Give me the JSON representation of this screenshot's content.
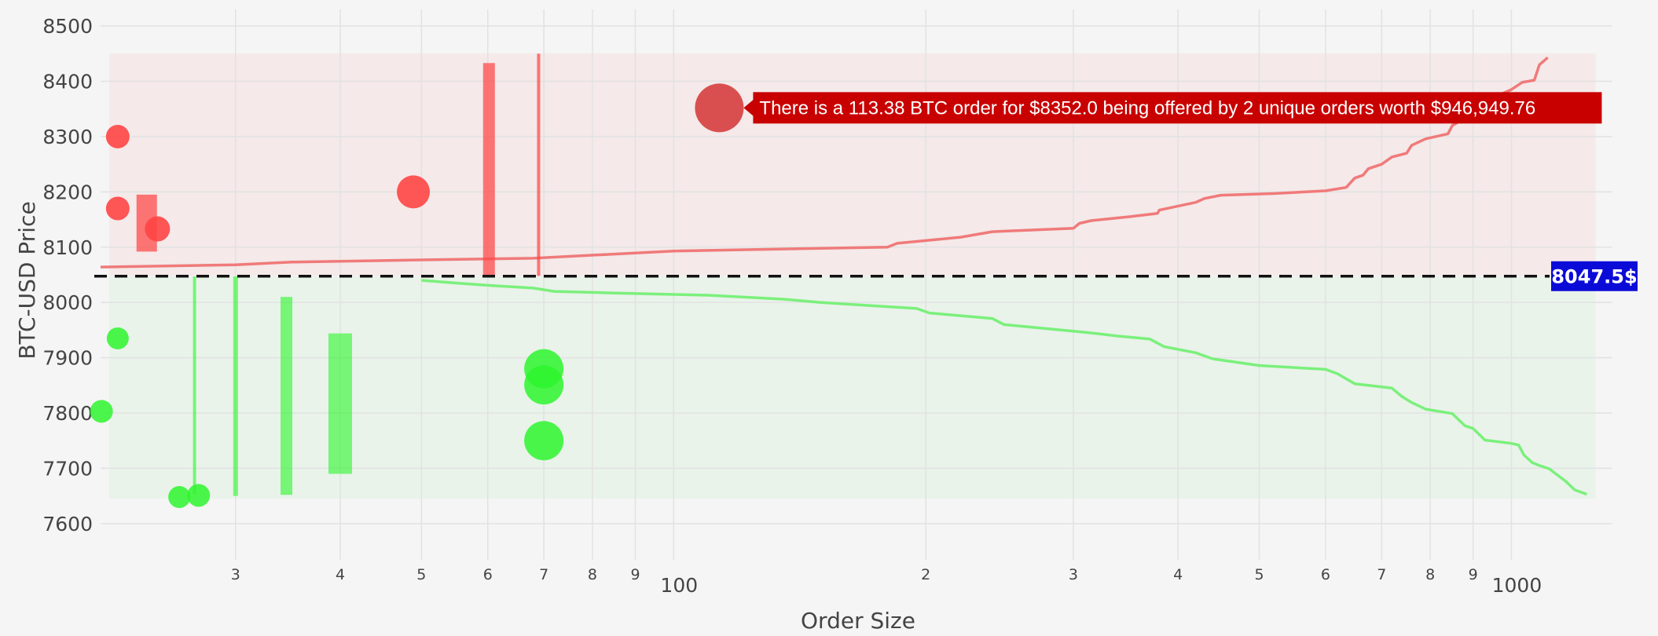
{
  "chart_data": {
    "type": "scatter",
    "title": "",
    "xlabel": "Order Size",
    "ylabel": "BTC-USD Price",
    "x_scale": "log",
    "xlim": [
      20.7,
      1320
    ],
    "ylim": [
      7560,
      8530
    ],
    "grid": true,
    "x_tick_labels": [
      {
        "value": 30,
        "label": "3"
      },
      {
        "value": 40,
        "label": "4"
      },
      {
        "value": 50,
        "label": "5"
      },
      {
        "value": 60,
        "label": "6"
      },
      {
        "value": 70,
        "label": "7"
      },
      {
        "value": 80,
        "label": "8"
      },
      {
        "value": 90,
        "label": "9"
      },
      {
        "value": 100,
        "label": "100"
      },
      {
        "value": 200,
        "label": "2"
      },
      {
        "value": 300,
        "label": "3"
      },
      {
        "value": 400,
        "label": "4"
      },
      {
        "value": 500,
        "label": "5"
      },
      {
        "value": 600,
        "label": "6"
      },
      {
        "value": 700,
        "label": "7"
      },
      {
        "value": 800,
        "label": "8"
      },
      {
        "value": 900,
        "label": "9"
      },
      {
        "value": 1000,
        "label": "1000"
      }
    ],
    "y_ticks": [
      7600,
      7700,
      7800,
      7900,
      8000,
      8100,
      8200,
      8300,
      8400,
      8500
    ],
    "mid_price": 8047.5,
    "mid_price_label": "8047.5$",
    "ask_band": [
      8048,
      8450
    ],
    "bid_band": [
      7645,
      8047
    ],
    "colors": {
      "ask": "#ff4545",
      "ask_line": "#f07a7a",
      "ask_band": "#f5e9e9",
      "bid": "#2ef52e",
      "bid_line": "#7bf07b",
      "bid_band": "#e9f3ea",
      "mid_label_bg": "#0b0bd8",
      "hover_bg": "#c80000",
      "hover_marker": "#d94f4f"
    },
    "ask_depth": [
      [
        20.7,
        8064
      ],
      [
        30,
        8068
      ],
      [
        35,
        8073
      ],
      [
        50,
        8077
      ],
      [
        68,
        8080
      ],
      [
        100,
        8093
      ],
      [
        150,
        8098
      ],
      [
        180,
        8100
      ],
      [
        185,
        8107
      ],
      [
        220,
        8118
      ],
      [
        240,
        8128
      ],
      [
        300,
        8134
      ],
      [
        305,
        8143
      ],
      [
        315,
        8148
      ],
      [
        350,
        8155
      ],
      [
        378,
        8161
      ],
      [
        380,
        8167
      ],
      [
        420,
        8181
      ],
      [
        430,
        8188
      ],
      [
        450,
        8194
      ],
      [
        520,
        8197
      ],
      [
        600,
        8202
      ],
      [
        635,
        8208
      ],
      [
        650,
        8225
      ],
      [
        665,
        8230
      ],
      [
        675,
        8242
      ],
      [
        700,
        8250
      ],
      [
        720,
        8263
      ],
      [
        750,
        8270
      ],
      [
        760,
        8284
      ],
      [
        790,
        8296
      ],
      [
        840,
        8305
      ],
      [
        850,
        8320
      ],
      [
        880,
        8333
      ],
      [
        900,
        8350
      ],
      [
        950,
        8370
      ],
      [
        1000,
        8385
      ],
      [
        1030,
        8398
      ],
      [
        1065,
        8402
      ],
      [
        1080,
        8430
      ],
      [
        1105,
        8443
      ]
    ],
    "bid_depth": [
      [
        50,
        8040
      ],
      [
        55,
        8035
      ],
      [
        60,
        8031
      ],
      [
        68,
        8026
      ],
      [
        72,
        8020
      ],
      [
        85,
        8017
      ],
      [
        110,
        8013
      ],
      [
        135,
        8006
      ],
      [
        150,
        8000
      ],
      [
        195,
        7989
      ],
      [
        202,
        7981
      ],
      [
        240,
        7971
      ],
      [
        248,
        7960
      ],
      [
        310,
        7946
      ],
      [
        340,
        7939
      ],
      [
        370,
        7934
      ],
      [
        385,
        7920
      ],
      [
        420,
        7909
      ],
      [
        440,
        7898
      ],
      [
        500,
        7886
      ],
      [
        600,
        7879
      ],
      [
        620,
        7871
      ],
      [
        650,
        7853
      ],
      [
        720,
        7845
      ],
      [
        740,
        7830
      ],
      [
        760,
        7819
      ],
      [
        790,
        7807
      ],
      [
        850,
        7799
      ],
      [
        880,
        7777
      ],
      [
        900,
        7772
      ],
      [
        930,
        7751
      ],
      [
        1000,
        7745
      ],
      [
        1020,
        7742
      ],
      [
        1035,
        7724
      ],
      [
        1060,
        7710
      ],
      [
        1080,
        7705
      ],
      [
        1110,
        7699
      ],
      [
        1130,
        7690
      ],
      [
        1160,
        7677
      ],
      [
        1190,
        7661
      ],
      [
        1230,
        7653
      ]
    ],
    "ask_orders": [
      {
        "x": 21.7,
        "y": 8300,
        "size": 30
      },
      {
        "x": 21.7,
        "y": 8170,
        "size": 30
      },
      {
        "x": 24.2,
        "y": 8133,
        "size": 32
      },
      {
        "x": 48.9,
        "y": 8200,
        "size": 42
      },
      {
        "x": 113.38,
        "y": 8352,
        "size": 62,
        "hover": true
      }
    ],
    "ask_bars": [
      {
        "x": 23.5,
        "y0": 8092,
        "y1": 8195,
        "width": 26
      },
      {
        "x": 60.2,
        "y0": 8048,
        "y1": 8433,
        "width": 15
      },
      {
        "x": 69.0,
        "y0": 8048,
        "y1": 8450,
        "width": 4
      }
    ],
    "bid_orders": [
      {
        "x": 21.7,
        "y": 7935,
        "size": 28
      },
      {
        "x": 20.75,
        "y": 7803,
        "size": 29
      },
      {
        "x": 25.7,
        "y": 7648,
        "size": 28
      },
      {
        "x": 27.1,
        "y": 7651,
        "size": 29
      },
      {
        "x": 70.0,
        "y": 7880,
        "size": 50
      },
      {
        "x": 70.0,
        "y": 7851,
        "size": 50
      },
      {
        "x": 70.0,
        "y": 7750,
        "size": 50
      }
    ],
    "bid_bars": [
      {
        "x": 26.8,
        "y0": 7653,
        "y1": 8047,
        "width": 4
      },
      {
        "x": 30.0,
        "y0": 7650,
        "y1": 8047,
        "width": 6
      },
      {
        "x": 34.5,
        "y0": 7652,
        "y1": 8010,
        "width": 15
      },
      {
        "x": 40.0,
        "y0": 7690,
        "y1": 7944,
        "width": 30
      }
    ],
    "hover_text": "There is a 113.38 BTC order for $8352.0 being offered by 2 unique orders worth $946,949.76"
  }
}
